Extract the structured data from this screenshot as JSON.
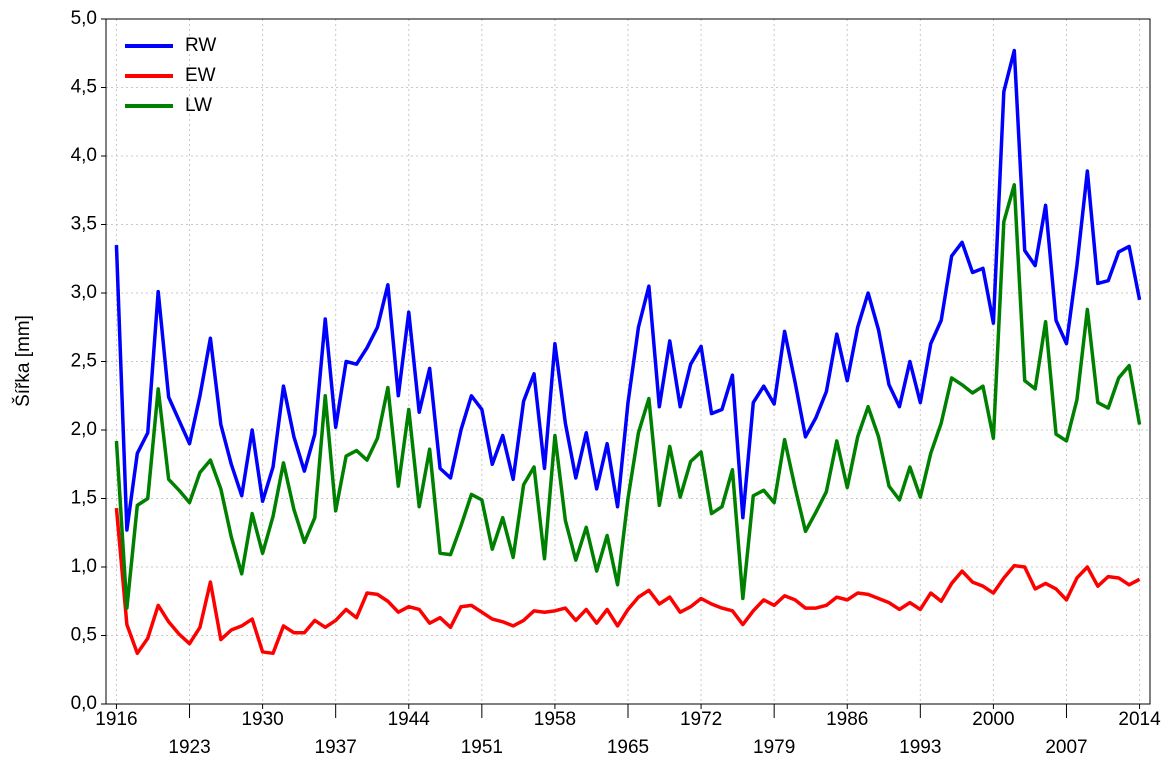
{
  "chart_data": {
    "type": "line",
    "ylabel": "Šířka [mm]",
    "xlim": [
      1915,
      2015
    ],
    "ylim": [
      0,
      5
    ],
    "xticks": [
      1916,
      1923,
      1930,
      1937,
      1944,
      1951,
      1958,
      1965,
      1972,
      1979,
      1986,
      1993,
      2000,
      2007,
      2014
    ],
    "yticks": [
      {
        "value": 0,
        "label": "0,0"
      },
      {
        "value": 0.5,
        "label": "0,5"
      },
      {
        "value": 1,
        "label": "1,0"
      },
      {
        "value": 1.5,
        "label": "1,5"
      },
      {
        "value": 2,
        "label": "2,0"
      },
      {
        "value": 2.5,
        "label": "2,5"
      },
      {
        "value": 3,
        "label": "3,0"
      },
      {
        "value": 3.5,
        "label": "3,5"
      },
      {
        "value": 4,
        "label": "4,0"
      },
      {
        "value": 4.5,
        "label": "4,5"
      },
      {
        "value": 5,
        "label": "5,0"
      }
    ],
    "grid": true,
    "legend": "upper left",
    "x": [
      1916,
      1917,
      1918,
      1919,
      1920,
      1921,
      1922,
      1923,
      1924,
      1925,
      1926,
      1927,
      1928,
      1929,
      1930,
      1931,
      1932,
      1933,
      1934,
      1935,
      1936,
      1937,
      1938,
      1939,
      1940,
      1941,
      1942,
      1943,
      1944,
      1945,
      1946,
      1947,
      1948,
      1949,
      1950,
      1951,
      1952,
      1953,
      1954,
      1955,
      1956,
      1957,
      1958,
      1959,
      1960,
      1961,
      1962,
      1963,
      1964,
      1965,
      1966,
      1967,
      1968,
      1969,
      1970,
      1971,
      1972,
      1973,
      1974,
      1975,
      1976,
      1977,
      1978,
      1979,
      1980,
      1981,
      1982,
      1983,
      1984,
      1985,
      1986,
      1987,
      1988,
      1989,
      1990,
      1991,
      1992,
      1993,
      1994,
      1995,
      1996,
      1997,
      1998,
      1999,
      2000,
      2001,
      2002,
      2003,
      2004,
      2005,
      2006,
      2007,
      2008,
      2009,
      2010,
      2011,
      2012,
      2013,
      2014
    ],
    "series": [
      {
        "name": "RW",
        "color": "#0000ff",
        "values": [
          3.35,
          1.27,
          1.83,
          1.98,
          3.01,
          2.24,
          2.07,
          1.9,
          2.25,
          2.67,
          2.04,
          1.75,
          1.52,
          2.0,
          1.48,
          1.73,
          2.32,
          1.95,
          1.7,
          1.97,
          2.81,
          2.02,
          2.5,
          2.48,
          2.6,
          2.75,
          3.06,
          2.25,
          2.86,
          2.13,
          2.45,
          1.72,
          1.65,
          2.0,
          2.25,
          2.15,
          1.75,
          1.96,
          1.64,
          2.21,
          2.41,
          1.72,
          2.63,
          2.05,
          1.65,
          1.98,
          1.57,
          1.9,
          1.44,
          2.2,
          2.75,
          3.05,
          2.17,
          2.65,
          2.17,
          2.48,
          2.61,
          2.12,
          2.15,
          2.4,
          1.36,
          2.2,
          2.32,
          2.19,
          2.72,
          2.35,
          1.95,
          2.09,
          2.28,
          2.7,
          2.36,
          2.75,
          3.0,
          2.73,
          2.33,
          2.17,
          2.5,
          2.2,
          2.63,
          2.8,
          3.27,
          3.37,
          3.15,
          3.18,
          2.78,
          4.47,
          4.77,
          3.31,
          3.2,
          3.64,
          2.8,
          2.63,
          3.2,
          3.89,
          3.07,
          3.09,
          3.3,
          3.34,
          2.95
        ]
      },
      {
        "name": "EW",
        "color": "#ff0000",
        "values": [
          1.43,
          0.58,
          0.37,
          0.48,
          0.72,
          0.6,
          0.51,
          0.44,
          0.56,
          0.89,
          0.47,
          0.54,
          0.57,
          0.62,
          0.38,
          0.37,
          0.57,
          0.52,
          0.52,
          0.61,
          0.56,
          0.61,
          0.69,
          0.63,
          0.81,
          0.8,
          0.75,
          0.67,
          0.71,
          0.69,
          0.59,
          0.63,
          0.56,
          0.71,
          0.72,
          0.67,
          0.62,
          0.6,
          0.57,
          0.61,
          0.68,
          0.67,
          0.68,
          0.7,
          0.61,
          0.69,
          0.59,
          0.69,
          0.57,
          0.69,
          0.78,
          0.83,
          0.73,
          0.78,
          0.67,
          0.71,
          0.77,
          0.73,
          0.7,
          0.68,
          0.58,
          0.68,
          0.76,
          0.72,
          0.79,
          0.76,
          0.7,
          0.7,
          0.72,
          0.78,
          0.76,
          0.81,
          0.8,
          0.77,
          0.74,
          0.69,
          0.74,
          0.69,
          0.81,
          0.75,
          0.88,
          0.97,
          0.89,
          0.86,
          0.81,
          0.92,
          1.01,
          1.0,
          0.84,
          0.88,
          0.84,
          0.76,
          0.92,
          1.0,
          0.86,
          0.93,
          0.92,
          0.87,
          0.91
        ]
      },
      {
        "name": "LW",
        "color": "#008000",
        "values": [
          1.92,
          0.7,
          1.45,
          1.5,
          2.3,
          1.64,
          1.56,
          1.47,
          1.69,
          1.78,
          1.57,
          1.22,
          0.95,
          1.39,
          1.1,
          1.37,
          1.76,
          1.42,
          1.18,
          1.36,
          2.25,
          1.41,
          1.81,
          1.85,
          1.78,
          1.94,
          2.31,
          1.59,
          2.15,
          1.44,
          1.86,
          1.1,
          1.09,
          1.3,
          1.53,
          1.49,
          1.13,
          1.36,
          1.07,
          1.6,
          1.73,
          1.06,
          1.96,
          1.34,
          1.05,
          1.29,
          0.97,
          1.23,
          0.87,
          1.5,
          1.98,
          2.23,
          1.45,
          1.88,
          1.51,
          1.77,
          1.84,
          1.39,
          1.44,
          1.71,
          0.77,
          1.52,
          1.56,
          1.47,
          1.93,
          1.58,
          1.26,
          1.4,
          1.55,
          1.92,
          1.58,
          1.95,
          2.17,
          1.95,
          1.59,
          1.49,
          1.73,
          1.51,
          1.83,
          2.05,
          2.38,
          2.33,
          2.27,
          2.32,
          1.94,
          3.52,
          3.79,
          2.36,
          2.3,
          2.79,
          1.97,
          1.92,
          2.22,
          2.88,
          2.2,
          2.16,
          2.38,
          2.47,
          2.04
        ]
      }
    ]
  }
}
